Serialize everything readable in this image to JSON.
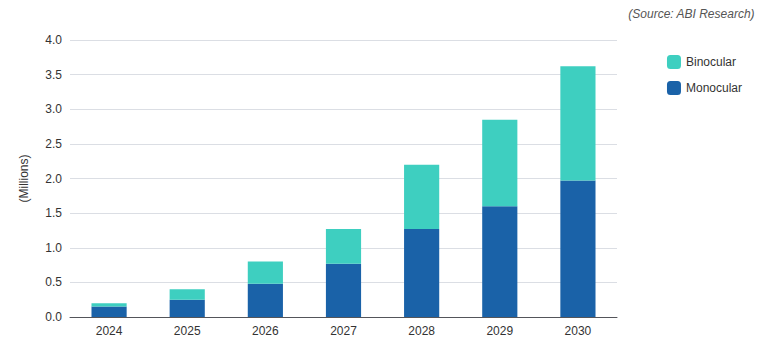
{
  "chart_data": {
    "type": "bar",
    "stacked": true,
    "categories": [
      "2024",
      "2025",
      "2026",
      "2027",
      "2028",
      "2029",
      "2030"
    ],
    "series": [
      {
        "name": "Monocular",
        "color": "#1A62A8",
        "values": [
          0.15,
          0.25,
          0.48,
          0.77,
          1.27,
          1.6,
          1.97
        ]
      },
      {
        "name": "Binocular",
        "color": "#3ECFC0",
        "values": [
          0.05,
          0.15,
          0.32,
          0.5,
          0.93,
          1.25,
          1.65
        ]
      }
    ],
    "ylabel": "(Millions)",
    "ylim": [
      0,
      4.0
    ],
    "yticks": [
      {
        "value": 0,
        "label": "0.0"
      },
      0.5,
      {
        "value": 1,
        "label": "1.0"
      },
      1.5,
      {
        "value": 2,
        "label": "2.0"
      },
      2.5,
      {
        "value": 3,
        "label": "3.0"
      },
      3.5,
      {
        "value": 4,
        "label": "4.0"
      }
    ],
    "grid": true,
    "legend": "upper right",
    "annotations": [
      "(Source: ABI Research)"
    ]
  }
}
